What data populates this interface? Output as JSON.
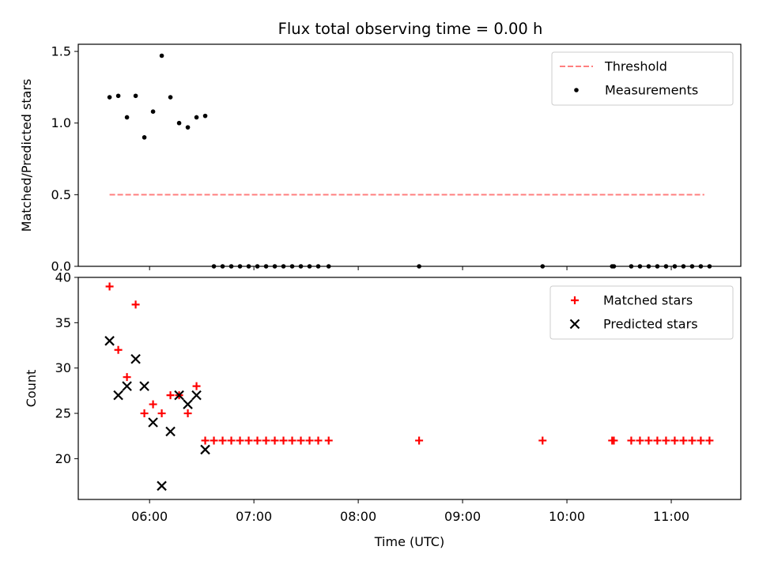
{
  "title": "Flux total observing time = 0.00 h",
  "chart_data": [
    {
      "type": "scatter",
      "ylabel": "Matched/Predicted stars",
      "xlim": [
        "05:19",
        "11:40"
      ],
      "ylim": [
        0,
        1.55
      ],
      "yticks": [
        0.0,
        0.5,
        1.0,
        1.5
      ],
      "ytick_labels": [
        "0.0",
        "0.5",
        "1.0",
        "1.5"
      ],
      "legend_position": "upper right",
      "threshold": {
        "name": "Threshold",
        "y": 0.5,
        "x_range": [
          "05:37",
          "11:19"
        ],
        "color": "#ff7f7f",
        "style": "dashed"
      },
      "series": [
        {
          "name": "Measurements",
          "color": "#000000",
          "marker": "dot",
          "points": [
            [
              "05:37",
              1.18
            ],
            [
              "05:42",
              1.19
            ],
            [
              "05:47",
              1.04
            ],
            [
              "05:52",
              1.19
            ],
            [
              "05:57",
              0.9
            ],
            [
              "06:02",
              1.08
            ],
            [
              "06:07",
              1.47
            ],
            [
              "06:12",
              1.18
            ],
            [
              "06:17",
              1.0
            ],
            [
              "06:22",
              0.97
            ],
            [
              "06:27",
              1.04
            ],
            [
              "06:32",
              1.05
            ],
            [
              "06:37",
              0
            ],
            [
              "06:42",
              0
            ],
            [
              "06:47",
              0
            ],
            [
              "06:52",
              0
            ],
            [
              "06:57",
              0
            ],
            [
              "07:02",
              0
            ],
            [
              "07:07",
              0
            ],
            [
              "07:12",
              0
            ],
            [
              "07:17",
              0
            ],
            [
              "07:22",
              0
            ],
            [
              "07:27",
              0
            ],
            [
              "07:32",
              0
            ],
            [
              "07:37",
              0
            ],
            [
              "07:43",
              0
            ],
            [
              "08:35",
              0
            ],
            [
              "09:46",
              0
            ],
            [
              "10:26",
              0
            ],
            [
              "10:27",
              0
            ],
            [
              "10:37",
              0
            ],
            [
              "10:42",
              0
            ],
            [
              "10:47",
              0
            ],
            [
              "10:52",
              0
            ],
            [
              "10:57",
              0
            ],
            [
              "11:02",
              0
            ],
            [
              "11:07",
              0
            ],
            [
              "11:12",
              0
            ],
            [
              "11:17",
              0
            ],
            [
              "11:22",
              0
            ]
          ]
        }
      ]
    },
    {
      "type": "scatter",
      "xlabel": "Time (UTC)",
      "ylabel": "Count",
      "xlim": [
        "05:19",
        "11:40"
      ],
      "ylim": [
        15.5,
        40
      ],
      "yticks": [
        20,
        25,
        30,
        35,
        40
      ],
      "ytick_labels": [
        "20",
        "25",
        "30",
        "35",
        "40"
      ],
      "xticks": [
        "06:00",
        "07:00",
        "08:00",
        "09:00",
        "10:00",
        "11:00"
      ],
      "xtick_labels": [
        "06:00",
        "07:00",
        "08:00",
        "09:00",
        "10:00",
        "11:00"
      ],
      "legend_position": "upper right",
      "series": [
        {
          "name": "Matched stars",
          "color": "#ff0000",
          "marker": "plus",
          "points": [
            [
              "05:37",
              39
            ],
            [
              "05:42",
              32
            ],
            [
              "05:47",
              29
            ],
            [
              "05:52",
              37
            ],
            [
              "05:57",
              25
            ],
            [
              "06:02",
              26
            ],
            [
              "06:07",
              25
            ],
            [
              "06:12",
              27
            ],
            [
              "06:17",
              27
            ],
            [
              "06:22",
              25
            ],
            [
              "06:27",
              28
            ],
            [
              "06:32",
              22
            ],
            [
              "06:37",
              22
            ],
            [
              "06:42",
              22
            ],
            [
              "06:47",
              22
            ],
            [
              "06:52",
              22
            ],
            [
              "06:57",
              22
            ],
            [
              "07:02",
              22
            ],
            [
              "07:07",
              22
            ],
            [
              "07:12",
              22
            ],
            [
              "07:17",
              22
            ],
            [
              "07:22",
              22
            ],
            [
              "07:27",
              22
            ],
            [
              "07:32",
              22
            ],
            [
              "07:37",
              22
            ],
            [
              "07:43",
              22
            ],
            [
              "08:35",
              22
            ],
            [
              "09:46",
              22
            ],
            [
              "10:26",
              22
            ],
            [
              "10:27",
              22
            ],
            [
              "10:37",
              22
            ],
            [
              "10:42",
              22
            ],
            [
              "10:47",
              22
            ],
            [
              "10:52",
              22
            ],
            [
              "10:57",
              22
            ],
            [
              "11:02",
              22
            ],
            [
              "11:07",
              22
            ],
            [
              "11:12",
              22
            ],
            [
              "11:17",
              22
            ],
            [
              "11:22",
              22
            ]
          ]
        },
        {
          "name": "Predicted stars",
          "color": "#000000",
          "marker": "x",
          "points": [
            [
              "05:37",
              33
            ],
            [
              "05:42",
              27
            ],
            [
              "05:47",
              28
            ],
            [
              "05:52",
              31
            ],
            [
              "05:57",
              28
            ],
            [
              "06:02",
              24
            ],
            [
              "06:07",
              17
            ],
            [
              "06:12",
              23
            ],
            [
              "06:17",
              27
            ],
            [
              "06:22",
              26
            ],
            [
              "06:27",
              27
            ],
            [
              "06:32",
              21
            ]
          ]
        }
      ]
    }
  ]
}
